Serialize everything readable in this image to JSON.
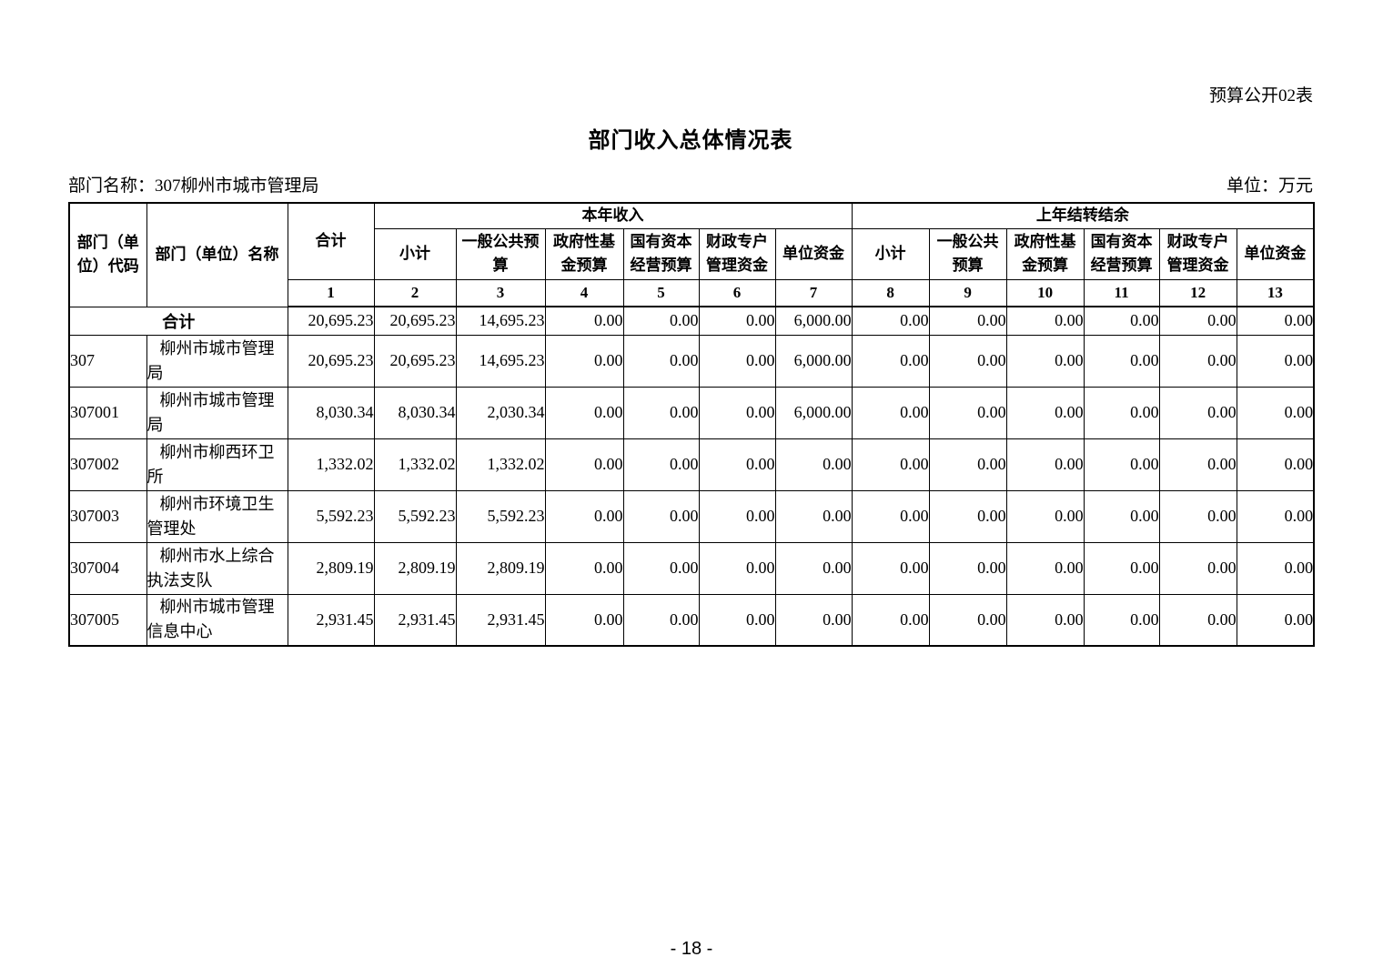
{
  "page": {
    "corner_note": "预算公开02表",
    "title": "部门收入总体情况表",
    "dept_label": "部门名称：307柳州市城市管理局",
    "unit_label": "单位：万元",
    "page_number": "- 18 -"
  },
  "table": {
    "headers": {
      "code": "部门（单位）代码",
      "name": "部门（单位）名称",
      "total": "合计",
      "group_current": "本年收入",
      "group_carryover": "上年结转结余",
      "subcols": [
        "小计",
        "一般公共预算",
        "政府性基金预算",
        "国有资本经营预算",
        "财政专户管理资金",
        "单位资金"
      ],
      "col_numbers": [
        "1",
        "2",
        "3",
        "4",
        "5",
        "6",
        "7",
        "8",
        "9",
        "10",
        "11",
        "12",
        "13"
      ]
    },
    "rows": [
      {
        "total_row": true,
        "code": "",
        "name": "合计",
        "values": [
          "20,695.23",
          "20,695.23",
          "14,695.23",
          "0.00",
          "0.00",
          "0.00",
          "6,000.00",
          "0.00",
          "0.00",
          "0.00",
          "0.00",
          "0.00",
          "0.00"
        ]
      },
      {
        "total_row": false,
        "code": "307",
        "name": "柳州市城市管理局",
        "values": [
          "20,695.23",
          "20,695.23",
          "14,695.23",
          "0.00",
          "0.00",
          "0.00",
          "6,000.00",
          "0.00",
          "0.00",
          "0.00",
          "0.00",
          "0.00",
          "0.00"
        ]
      },
      {
        "total_row": false,
        "code": "307001",
        "name": "柳州市城市管理局",
        "values": [
          "8,030.34",
          "8,030.34",
          "2,030.34",
          "0.00",
          "0.00",
          "0.00",
          "6,000.00",
          "0.00",
          "0.00",
          "0.00",
          "0.00",
          "0.00",
          "0.00"
        ]
      },
      {
        "total_row": false,
        "code": "307002",
        "name": "柳州市柳西环卫所",
        "values": [
          "1,332.02",
          "1,332.02",
          "1,332.02",
          "0.00",
          "0.00",
          "0.00",
          "0.00",
          "0.00",
          "0.00",
          "0.00",
          "0.00",
          "0.00",
          "0.00"
        ]
      },
      {
        "total_row": false,
        "code": "307003",
        "name": "柳州市环境卫生管理处",
        "values": [
          "5,592.23",
          "5,592.23",
          "5,592.23",
          "0.00",
          "0.00",
          "0.00",
          "0.00",
          "0.00",
          "0.00",
          "0.00",
          "0.00",
          "0.00",
          "0.00"
        ]
      },
      {
        "total_row": false,
        "code": "307004",
        "name": "柳州市水上综合执法支队",
        "values": [
          "2,809.19",
          "2,809.19",
          "2,809.19",
          "0.00",
          "0.00",
          "0.00",
          "0.00",
          "0.00",
          "0.00",
          "0.00",
          "0.00",
          "0.00",
          "0.00"
        ]
      },
      {
        "total_row": false,
        "code": "307005",
        "name": "柳州市城市管理信息中心",
        "values": [
          "2,931.45",
          "2,931.45",
          "2,931.45",
          "0.00",
          "0.00",
          "0.00",
          "0.00",
          "0.00",
          "0.00",
          "0.00",
          "0.00",
          "0.00",
          "0.00"
        ]
      }
    ]
  }
}
